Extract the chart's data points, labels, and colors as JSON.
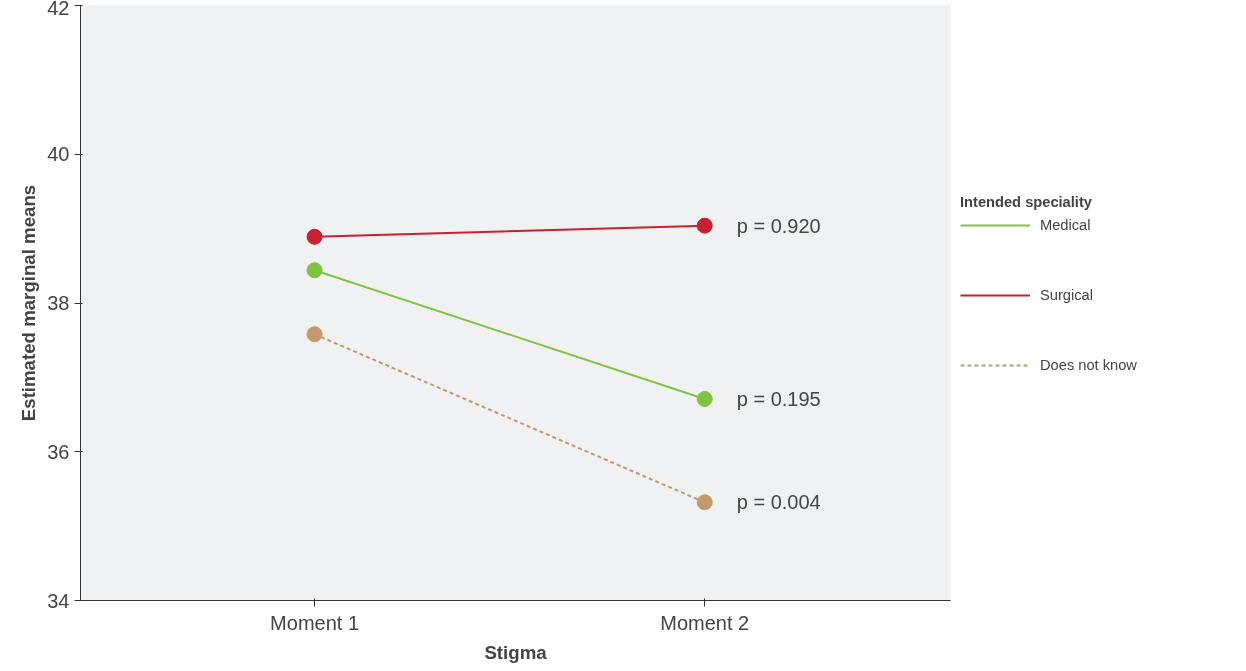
{
  "chart_data": {
    "type": "line",
    "xlabel": "Stigma",
    "ylabel": "Estimated marginal means",
    "legend_title": "Intended speciality",
    "categories": [
      "Moment 1",
      "Moment 2"
    ],
    "series": [
      {
        "name": "Medical",
        "color": "#80c342",
        "values": [
          38.44,
          36.71
        ],
        "line_style": "solid"
      },
      {
        "name": "Surgical",
        "color": "#c8202f",
        "values": [
          38.89,
          39.04
        ],
        "line_style": "solid"
      },
      {
        "name": "Does not know",
        "color": "#c49a6c",
        "values": [
          37.58,
          35.32
        ],
        "line_style": "dashed"
      }
    ],
    "ylim": [
      34,
      42
    ],
    "yticks": [
      34,
      36,
      38,
      40,
      42
    ],
    "grid": false,
    "legend": "right",
    "marker": "circle",
    "annotations": [
      {
        "text": "p = 0.920",
        "x": "Moment 2",
        "y": 39.04
      },
      {
        "text": "p = 0.195",
        "x": "Moment 2",
        "y": 36.71
      },
      {
        "text": "p = 0.004",
        "x": "Moment 2",
        "y": 35.32
      }
    ]
  }
}
